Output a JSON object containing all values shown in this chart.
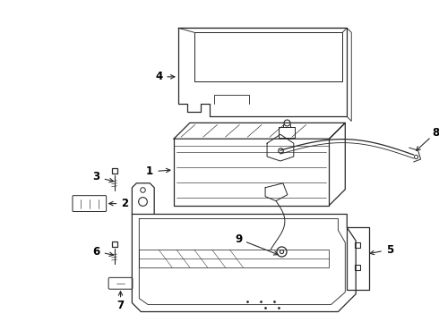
{
  "bg_color": "#ffffff",
  "line_color": "#2a2a2a",
  "label_color": "#000000",
  "lw": 0.9,
  "figsize": [
    4.9,
    3.6
  ],
  "dpi": 100
}
